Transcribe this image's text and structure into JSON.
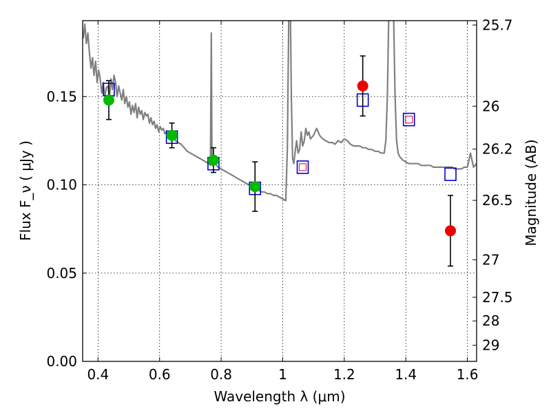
{
  "chart_data": {
    "type": "scatter",
    "title": "",
    "xlabel": "Wavelength  λ (μm)",
    "ylabel": "Flux  F_ν  ( μJy )",
    "ylabel_right": "Magnitude (AB)",
    "xlim": [
      0.35,
      1.63
    ],
    "ylim": [
      0.0,
      0.193
    ],
    "grid": true,
    "legend": "none",
    "x_ticks": [
      0.4,
      0.6,
      0.8,
      1.0,
      1.2,
      1.4,
      1.6
    ],
    "x_tick_labels": [
      "0.4",
      "0.6",
      "0.8",
      "1",
      "1.2",
      "1.4",
      "1.6"
    ],
    "y_ticks": [
      0.0,
      0.05,
      0.1,
      0.15
    ],
    "y_tick_labels": [
      "0.00",
      "0.05",
      "0.10",
      "0.15"
    ],
    "right_ticks": [
      {
        "label": "25.7",
        "mag": 25.7
      },
      {
        "label": "26",
        "mag": 26.0
      },
      {
        "label": "26.2",
        "mag": 26.2
      },
      {
        "label": "26.5",
        "mag": 26.5
      },
      {
        "label": "27",
        "mag": 27.0
      },
      {
        "label": "27.5",
        "mag": 27.5
      },
      {
        "label": "28",
        "mag": 28.0
      },
      {
        "label": "29",
        "mag": 29.0
      }
    ],
    "series": [
      {
        "type": "line",
        "color": "#808080",
        "x": [
          0.352,
          0.357,
          0.362,
          0.367,
          0.372,
          0.377,
          0.382,
          0.387,
          0.392,
          0.397,
          0.402,
          0.407,
          0.412,
          0.417,
          0.422,
          0.427,
          0.432,
          0.437,
          0.442,
          0.447,
          0.452,
          0.457,
          0.462,
          0.467,
          0.472,
          0.477,
          0.482,
          0.487,
          0.492,
          0.497,
          0.502,
          0.507,
          0.512,
          0.517,
          0.522,
          0.527,
          0.532,
          0.537,
          0.542,
          0.547,
          0.552,
          0.557,
          0.562,
          0.567,
          0.572,
          0.577,
          0.582,
          0.587,
          0.592,
          0.597,
          0.602,
          0.607,
          0.612,
          0.617,
          0.622,
          0.627,
          0.632,
          0.637,
          0.642,
          0.647,
          0.652,
          0.66,
          0.67,
          0.68,
          0.69,
          0.7,
          0.71,
          0.72,
          0.73,
          0.74,
          0.75,
          0.76,
          0.765,
          0.768,
          0.77,
          0.772,
          0.775,
          0.78,
          0.79,
          0.8,
          0.81,
          0.82,
          0.83,
          0.84,
          0.85,
          0.86,
          0.87,
          0.88,
          0.89,
          0.9,
          0.91,
          0.92,
          0.93,
          0.94,
          0.95,
          0.96,
          0.97,
          0.98,
          0.99,
          1.0,
          1.01,
          1.015,
          1.02,
          1.025,
          1.028,
          1.032,
          1.036,
          1.04,
          1.045,
          1.05,
          1.055,
          1.06,
          1.065,
          1.07,
          1.075,
          1.08,
          1.085,
          1.09,
          1.1,
          1.11,
          1.12,
          1.13,
          1.14,
          1.15,
          1.16,
          1.17,
          1.18,
          1.19,
          1.2,
          1.21,
          1.22,
          1.23,
          1.24,
          1.25,
          1.26,
          1.27,
          1.28,
          1.29,
          1.3,
          1.31,
          1.32,
          1.33,
          1.335,
          1.34,
          1.345,
          1.35,
          1.355,
          1.36,
          1.365,
          1.37,
          1.375,
          1.38,
          1.39,
          1.4,
          1.41,
          1.42,
          1.43,
          1.44,
          1.45,
          1.46,
          1.47,
          1.48,
          1.49,
          1.5,
          1.51,
          1.52,
          1.53,
          1.54,
          1.55,
          1.56,
          1.57,
          1.58,
          1.59,
          1.6,
          1.61,
          1.62,
          1.63
        ],
        "y": [
          0.183,
          0.191,
          0.18,
          0.186,
          0.175,
          0.166,
          0.172,
          0.162,
          0.17,
          0.158,
          0.165,
          0.16,
          0.152,
          0.158,
          0.15,
          0.155,
          0.156,
          0.149,
          0.16,
          0.154,
          0.162,
          0.158,
          0.15,
          0.156,
          0.152,
          0.148,
          0.154,
          0.146,
          0.15,
          0.144,
          0.147,
          0.14,
          0.145,
          0.141,
          0.146,
          0.138,
          0.144,
          0.14,
          0.142,
          0.137,
          0.141,
          0.139,
          0.14,
          0.135,
          0.138,
          0.134,
          0.136,
          0.132,
          0.134,
          0.13,
          0.133,
          0.131,
          0.132,
          0.129,
          0.13,
          0.127,
          0.129,
          0.128,
          0.126,
          0.127,
          0.125,
          0.124,
          0.123,
          0.121,
          0.119,
          0.118,
          0.117,
          0.116,
          0.115,
          0.114,
          0.113,
          0.112,
          0.111,
          0.186,
          0.118,
          0.111,
          0.113,
          0.112,
          0.11,
          0.109,
          0.108,
          0.107,
          0.106,
          0.105,
          0.104,
          0.103,
          0.102,
          0.101,
          0.1,
          0.099,
          0.098,
          0.097,
          0.096,
          0.096,
          0.095,
          0.095,
          0.094,
          0.094,
          0.093,
          0.092,
          0.091,
          0.12,
          0.2,
          0.2,
          0.15,
          0.115,
          0.112,
          0.118,
          0.125,
          0.118,
          0.12,
          0.13,
          0.122,
          0.125,
          0.132,
          0.128,
          0.13,
          0.126,
          0.128,
          0.132,
          0.128,
          0.126,
          0.125,
          0.124,
          0.124,
          0.123,
          0.125,
          0.124,
          0.126,
          0.125,
          0.123,
          0.122,
          0.122,
          0.122,
          0.121,
          0.121,
          0.12,
          0.12,
          0.119,
          0.119,
          0.118,
          0.118,
          0.125,
          0.15,
          0.2,
          0.2,
          0.2,
          0.2,
          0.15,
          0.125,
          0.118,
          0.116,
          0.114,
          0.113,
          0.112,
          0.112,
          0.112,
          0.112,
          0.111,
          0.111,
          0.111,
          0.111,
          0.11,
          0.11,
          0.11,
          0.11,
          0.11,
          0.11,
          0.11,
          0.109,
          0.109,
          0.109,
          0.11,
          0.11,
          0.118,
          0.11,
          0.112
        ]
      },
      {
        "type": "scatter",
        "marker": "square-open",
        "color": "#0000cc",
        "x": [
          0.435,
          0.64,
          0.775,
          0.91,
          1.065,
          1.26,
          1.41,
          1.545
        ],
        "y": [
          0.154,
          0.127,
          0.112,
          0.098,
          0.11,
          0.148,
          0.137,
          0.106
        ]
      },
      {
        "type": "scatter",
        "marker": "circle",
        "color": "#00bb00",
        "x": [
          0.435,
          0.64,
          0.775,
          0.91
        ],
        "y": [
          0.148,
          0.128,
          0.114,
          0.099
        ],
        "yerr": [
          0.011,
          0.007,
          0.007,
          0.014
        ]
      },
      {
        "type": "scatter",
        "marker": "circle",
        "color": "#ee0000",
        "x": [
          1.26,
          1.545
        ],
        "y": [
          0.156,
          0.074
        ],
        "yerr": [
          0.017,
          0.02
        ]
      },
      {
        "type": "scatter",
        "marker": "square-small-open",
        "color": "#dd2266",
        "x": [
          1.065,
          1.41
        ],
        "y": [
          0.11,
          0.137
        ]
      }
    ]
  }
}
